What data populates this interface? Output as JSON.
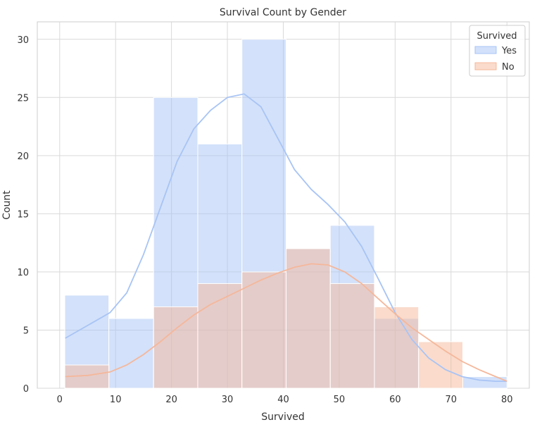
{
  "chart_data": {
    "type": "bar",
    "title": "Survival Count by Gender",
    "xlabel": "Survived",
    "ylabel": "Count",
    "xlim": [
      -4,
      84
    ],
    "ylim": [
      0,
      31.5
    ],
    "xticks": [
      "0",
      "10",
      "20",
      "30",
      "40",
      "50",
      "60",
      "70",
      "80"
    ],
    "yticks": [
      "0",
      "5",
      "10",
      "15",
      "20",
      "25",
      "30"
    ],
    "bin_edges": [
      0.92,
      8.8,
      16.8,
      24.7,
      32.6,
      40.5,
      48.4,
      56.3,
      64.2,
      72.1,
      80
    ],
    "grid": true,
    "legend": {
      "title": "Survived",
      "placement": "top-right"
    },
    "series": [
      {
        "name": "Yes",
        "color": "#a8c4f5",
        "values": [
          8,
          6,
          25,
          21,
          30,
          12,
          14,
          6,
          0,
          1
        ],
        "kde": [
          [
            1,
            4.3
          ],
          [
            5,
            5.4
          ],
          [
            9,
            6.5
          ],
          [
            12,
            8.2
          ],
          [
            15,
            11.5
          ],
          [
            18,
            15.5
          ],
          [
            21,
            19.5
          ],
          [
            24,
            22.3
          ],
          [
            27,
            23.9
          ],
          [
            30,
            25.0
          ],
          [
            33,
            25.3
          ],
          [
            36,
            24.2
          ],
          [
            39,
            21.5
          ],
          [
            42,
            18.8
          ],
          [
            45,
            17.1
          ],
          [
            48,
            15.8
          ],
          [
            51,
            14.3
          ],
          [
            54,
            12.2
          ],
          [
            57,
            9.4
          ],
          [
            60,
            6.5
          ],
          [
            63,
            4.2
          ],
          [
            66,
            2.6
          ],
          [
            69,
            1.6
          ],
          [
            72,
            1.0
          ],
          [
            75,
            0.7
          ],
          [
            78,
            0.6
          ],
          [
            80,
            0.6
          ]
        ]
      },
      {
        "name": "No",
        "color": "#f5b79a",
        "values": [
          2,
          0,
          7,
          9,
          10,
          12,
          9,
          7,
          4,
          0
        ],
        "kde": [
          [
            1,
            1.0
          ],
          [
            5,
            1.1
          ],
          [
            9,
            1.4
          ],
          [
            12,
            2.0
          ],
          [
            15,
            2.9
          ],
          [
            18,
            4.0
          ],
          [
            21,
            5.2
          ],
          [
            24,
            6.3
          ],
          [
            27,
            7.2
          ],
          [
            30,
            7.9
          ],
          [
            33,
            8.6
          ],
          [
            36,
            9.3
          ],
          [
            39,
            9.9
          ],
          [
            42,
            10.4
          ],
          [
            45,
            10.7
          ],
          [
            48,
            10.6
          ],
          [
            51,
            10.0
          ],
          [
            54,
            9.0
          ],
          [
            57,
            7.7
          ],
          [
            60,
            6.4
          ],
          [
            63,
            5.2
          ],
          [
            66,
            4.2
          ],
          [
            69,
            3.2
          ],
          [
            72,
            2.3
          ],
          [
            75,
            1.6
          ],
          [
            78,
            1.0
          ],
          [
            80,
            0.6
          ]
        ]
      }
    ]
  }
}
